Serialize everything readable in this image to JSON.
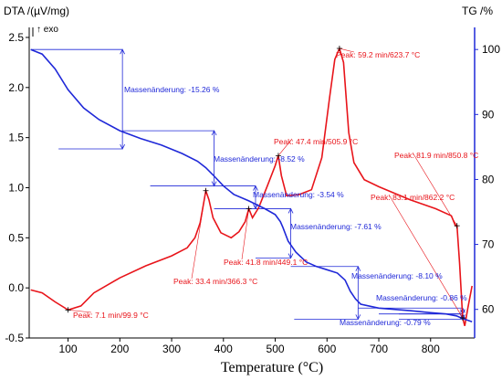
{
  "chart_data": {
    "type": "line",
    "xlabel": "Temperature (°C)",
    "ylabel_left": "DTA /(µV/mg)",
    "ylabel_right": "TG /%",
    "exo_label": "↑ exo",
    "xlim": [
      25,
      885
    ],
    "ylim_left": [
      -0.5,
      2.6
    ],
    "ylim_right": [
      55.6,
      103.4
    ],
    "x_ticks": [
      100,
      200,
      300,
      400,
      500,
      600,
      700,
      800
    ],
    "y_left_ticks": [
      "2.5",
      "2.0",
      "1.5",
      "1.0",
      "0.5",
      "0.0",
      "-0.5"
    ],
    "y_left_values": [
      2.5,
      2.0,
      1.5,
      1.0,
      0.5,
      0.0,
      -0.5
    ],
    "y_right_ticks": [
      "100",
      "90",
      "80",
      "70",
      "60"
    ],
    "y_right_values": [
      100,
      90,
      80,
      70,
      60
    ],
    "colors": {
      "dta": "#e8141a",
      "tg": "#1f28d8",
      "axis_left": "#000000",
      "axis_right": "#1f28d8"
    },
    "series": [
      {
        "axis": "left",
        "points": [
          [
            28,
            -0.02
          ],
          [
            50,
            -0.05
          ],
          [
            75,
            -0.14
          ],
          [
            100,
            -0.22
          ],
          [
            125,
            -0.18
          ],
          [
            150,
            -0.05
          ],
          [
            200,
            0.1
          ],
          [
            250,
            0.22
          ],
          [
            300,
            0.32
          ],
          [
            330,
            0.4
          ],
          [
            345,
            0.5
          ],
          [
            355,
            0.65
          ],
          [
            362,
            0.85
          ],
          [
            366,
            0.97
          ],
          [
            372,
            0.88
          ],
          [
            380,
            0.7
          ],
          [
            395,
            0.55
          ],
          [
            415,
            0.5
          ],
          [
            430,
            0.56
          ],
          [
            442,
            0.66
          ],
          [
            449,
            0.79
          ],
          [
            456,
            0.7
          ],
          [
            468,
            0.8
          ],
          [
            485,
            1.02
          ],
          [
            500,
            1.22
          ],
          [
            506,
            1.32
          ],
          [
            512,
            1.12
          ],
          [
            522,
            0.92
          ],
          [
            545,
            0.93
          ],
          [
            570,
            0.98
          ],
          [
            590,
            1.3
          ],
          [
            605,
            1.9
          ],
          [
            615,
            2.28
          ],
          [
            624,
            2.39
          ],
          [
            632,
            2.25
          ],
          [
            642,
            1.55
          ],
          [
            652,
            1.25
          ],
          [
            672,
            1.08
          ],
          [
            700,
            1.01
          ],
          [
            760,
            0.88
          ],
          [
            810,
            0.79
          ],
          [
            840,
            0.72
          ],
          [
            848,
            0.62
          ],
          [
            851,
            0.62
          ],
          [
            856,
            0.25
          ],
          [
            862,
            -0.3
          ],
          [
            866,
            -0.38
          ],
          [
            872,
            -0.2
          ],
          [
            880,
            0.02
          ]
        ]
      },
      {
        "axis": "right",
        "points": [
          [
            28,
            100.0
          ],
          [
            50,
            99.3
          ],
          [
            75,
            97.0
          ],
          [
            100,
            93.8
          ],
          [
            130,
            91.0
          ],
          [
            160,
            89.2
          ],
          [
            200,
            87.5
          ],
          [
            240,
            86.3
          ],
          [
            280,
            85.3
          ],
          [
            320,
            84.0
          ],
          [
            350,
            82.8
          ],
          [
            366,
            81.8
          ],
          [
            380,
            80.7
          ],
          [
            400,
            79.0
          ],
          [
            420,
            77.7
          ],
          [
            449,
            76.7
          ],
          [
            480,
            75.5
          ],
          [
            500,
            74.6
          ],
          [
            510,
            73.5
          ],
          [
            515,
            72.6
          ],
          [
            525,
            70.5
          ],
          [
            540,
            68.8
          ],
          [
            560,
            67.3
          ],
          [
            580,
            66.6
          ],
          [
            600,
            66.1
          ],
          [
            620,
            65.6
          ],
          [
            635,
            64.5
          ],
          [
            645,
            62.8
          ],
          [
            655,
            61.6
          ],
          [
            665,
            60.8
          ],
          [
            700,
            60.2
          ],
          [
            760,
            59.8
          ],
          [
            800,
            59.5
          ],
          [
            830,
            59.3
          ],
          [
            850,
            59.0
          ],
          [
            862,
            58.6
          ],
          [
            880,
            58.1
          ]
        ]
      }
    ],
    "annotations_red": [
      {
        "text": "Peak: 7.1 min/99.9 °C",
        "x": 100,
        "y": -0.22
      },
      {
        "text": "Peak: 33.4 min/366.3 °C",
        "x": 366,
        "y": 0.97
      },
      {
        "text": "Peak: 41.8 min/449.1 °C",
        "x": 449,
        "y": 0.79
      },
      {
        "text": "Peak: 47.4 min/505.9 °C",
        "x": 506,
        "y": 1.32
      },
      {
        "text": "Peak: 59.2 min/623.7 °C",
        "x": 624,
        "y": 2.39
      },
      {
        "text": "Peak: 81.9 min/850.8 °C",
        "x": 851,
        "y": 0.62
      },
      {
        "text": "Peak: 83.1 min/862.2 °C",
        "x": 862,
        "y": -0.3
      }
    ],
    "annotations_blue": [
      "Massenänderung: -15.26 %",
      "Massenänderung: -8.52 %",
      "Massenänderung: -3.54 %",
      "Massenänderung: -7.61 %",
      "Massenänderung: -8.10 %",
      "Massenänderung: -0.86 %",
      "Massenänderung: -0.79 %"
    ],
    "steps_blue": [
      {
        "x1": 28,
        "x2": 205,
        "y_top": 100.0,
        "y_bot": 84.7
      },
      {
        "x1": 205,
        "x2": 382,
        "y_top": 87.5,
        "y_bot": 79.0
      },
      {
        "x1": 382,
        "x2": 462,
        "y_top": 79.0,
        "y_bot": 75.5
      },
      {
        "x1": 462,
        "x2": 530,
        "y_top": 75.5,
        "y_bot": 67.9
      },
      {
        "x1": 530,
        "x2": 660,
        "y_top": 66.6,
        "y_bot": 58.5
      },
      {
        "x1": 660,
        "x2": 862,
        "y_top": 60.2,
        "y_bot": 59.3
      },
      {
        "x1": 700,
        "x2": 862,
        "y_top": 59.3,
        "y_bot": 58.5
      }
    ]
  }
}
